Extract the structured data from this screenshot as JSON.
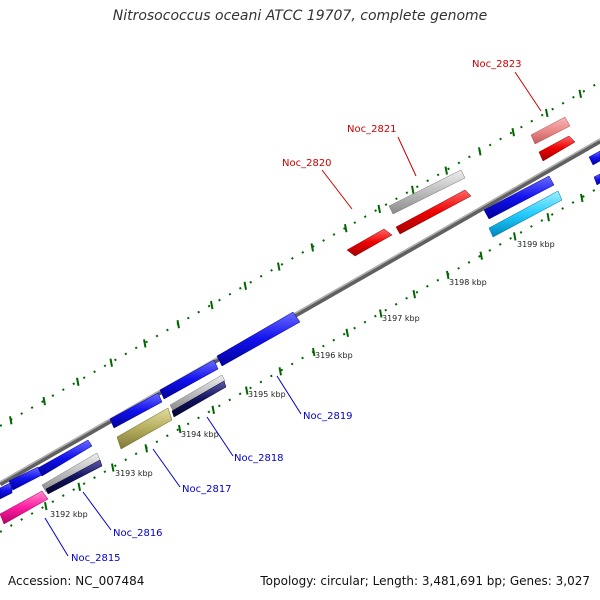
{
  "title": "Nitrosococcus oceani ATCC 19707, complete genome",
  "footer": {
    "accession": "Accession: NC_007484",
    "summary": "Topology: circular; Length: 3,481,691 bp; Genes: 3,027"
  },
  "colors": {
    "forward_label": "#cc0000",
    "reverse_label": "#0000cc",
    "backbone": "#808080",
    "tick": "#006600"
  },
  "scale_labels": [
    "3192 kbp",
    "3193 kbp",
    "3194 kbp",
    "3195 kbp",
    "3196 kbp",
    "3197 kbp",
    "3198 kbp",
    "3199 kbp"
  ],
  "gene_labels": [
    {
      "name": "Noc_2815",
      "strand": "reverse"
    },
    {
      "name": "Noc_2816",
      "strand": "reverse"
    },
    {
      "name": "Noc_2817",
      "strand": "reverse"
    },
    {
      "name": "Noc_2818",
      "strand": "reverse"
    },
    {
      "name": "Noc_2819",
      "strand": "reverse"
    },
    {
      "name": "Noc_2820",
      "strand": "forward"
    },
    {
      "name": "Noc_2821",
      "strand": "forward"
    },
    {
      "name": "Noc_2823",
      "strand": "forward"
    }
  ]
}
